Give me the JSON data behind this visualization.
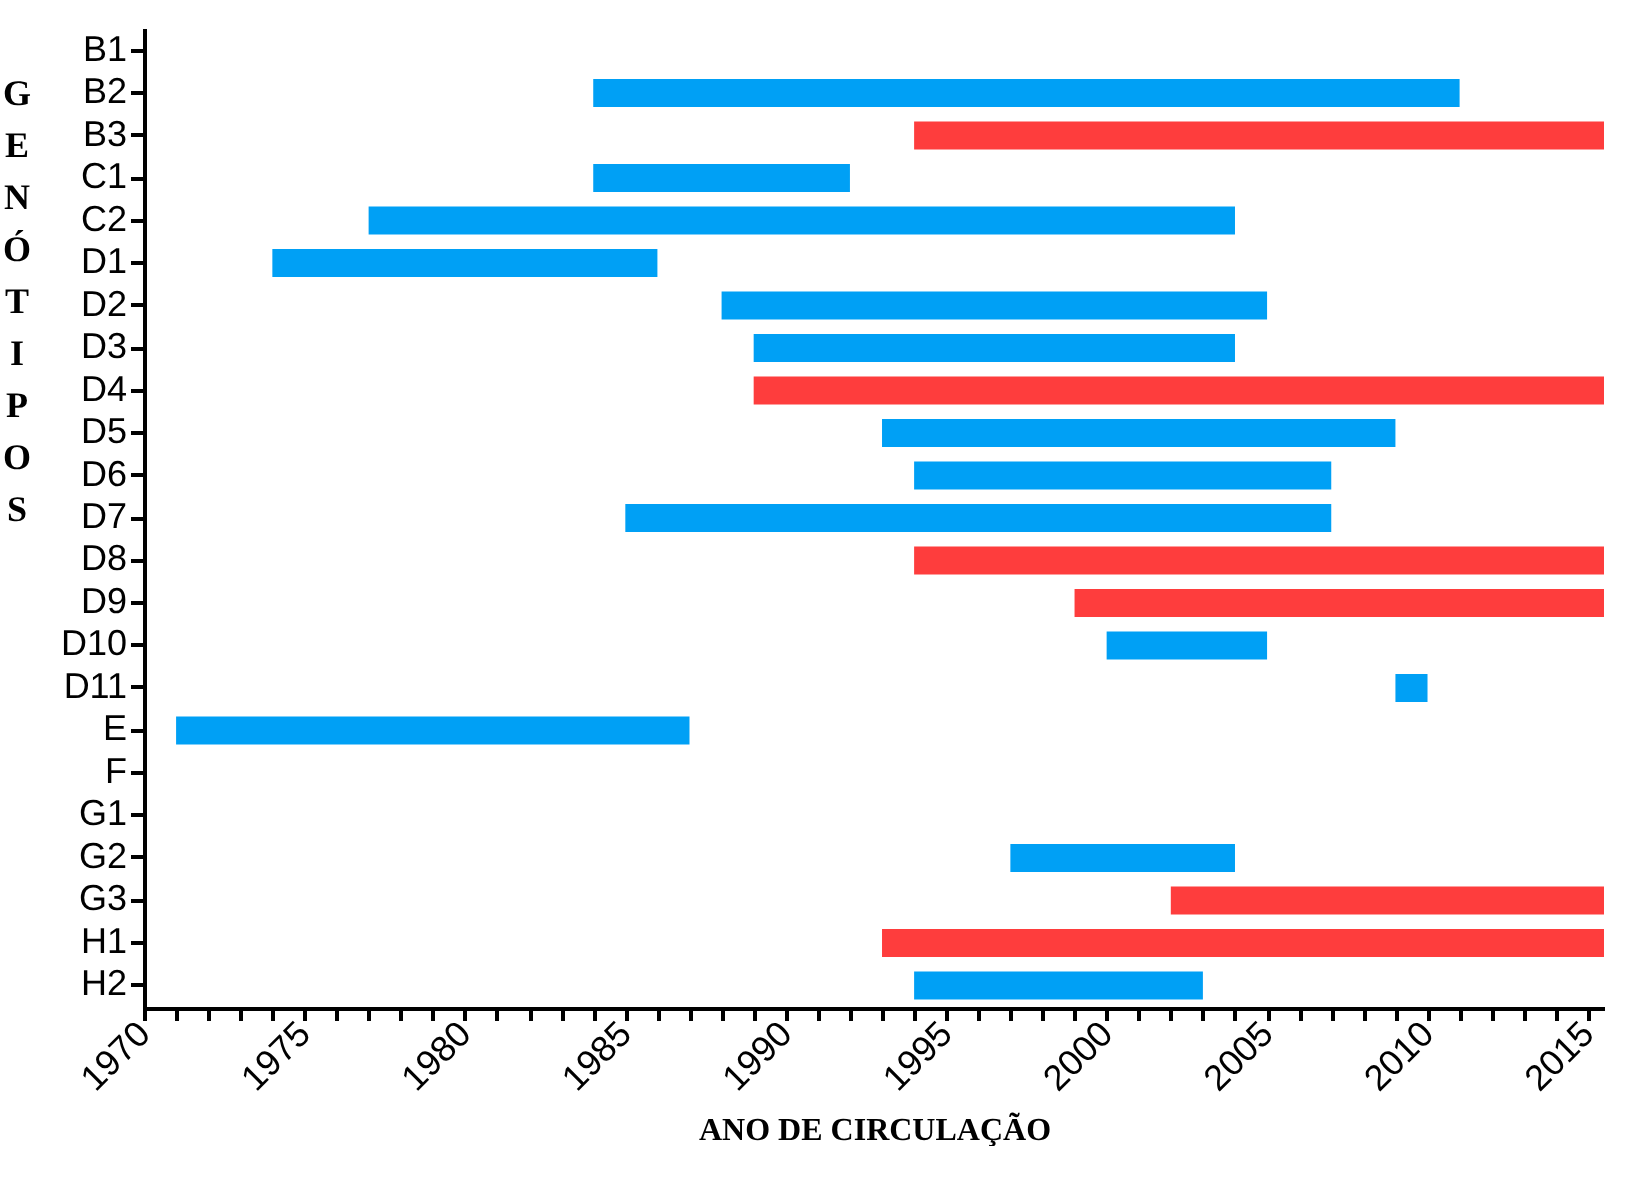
{
  "chart_data": {
    "type": "bar",
    "orientation": "horizontal",
    "xlabel": "ANO DE CIRCULAÇÃO",
    "ylabel": "GENÓTIPOS",
    "categories": [
      "B1",
      "B2",
      "B3",
      "C1",
      "C2",
      "D1",
      "D2",
      "D3",
      "D4",
      "D5",
      "D6",
      "D7",
      "D8",
      "D9",
      "D10",
      "D11",
      "E",
      "F",
      "G1",
      "G2",
      "G3",
      "H1",
      "H2"
    ],
    "base": [
      null,
      1984,
      1994,
      1984,
      1977,
      1974,
      1988,
      1989,
      1989,
      1993,
      1994,
      1985,
      1994,
      1999,
      2000,
      2009,
      1971,
      null,
      null,
      1997,
      2002,
      1993,
      1994
    ],
    "values": [
      null,
      27,
      21.5,
      8,
      27,
      12,
      17,
      15,
      26.5,
      16,
      13,
      22,
      21.5,
      16.5,
      5,
      1,
      16,
      null,
      null,
      7,
      13.5,
      22.5,
      9
    ],
    "colors": [
      null,
      "#00a0f5",
      "#fe3d3d",
      "#00a0f5",
      "#00a0f5",
      "#00a0f5",
      "#00a0f5",
      "#00a0f5",
      "#fe3d3d",
      "#00a0f5",
      "#00a0f5",
      "#00a0f5",
      "#fe3d3d",
      "#fe3d3d",
      "#00a0f5",
      "#00a0f5",
      "#00a0f5",
      null,
      null,
      "#00a0f5",
      "#fe3d3d",
      "#fe3d3d",
      "#00a0f5"
    ],
    "xlim": [
      1970,
      2015.5
    ],
    "xticks": [
      1970,
      {
        "value": 1971,
        "label": null
      },
      {
        "value": 1972,
        "label": null
      },
      {
        "value": 1973,
        "label": null
      },
      {
        "value": 1974,
        "label": null
      },
      1975,
      {
        "value": 1976,
        "label": null
      },
      {
        "value": 1977,
        "label": null
      },
      {
        "value": 1978,
        "label": null
      },
      {
        "value": 1979,
        "label": null
      },
      1980,
      {
        "value": 1981,
        "label": null
      },
      {
        "value": 1982,
        "label": null
      },
      {
        "value": 1983,
        "label": null
      },
      {
        "value": 1984,
        "label": null
      },
      1985,
      {
        "value": 1986,
        "label": null
      },
      {
        "value": 1987,
        "label": null
      },
      {
        "value": 1988,
        "label": null
      },
      {
        "value": 1989,
        "label": null
      },
      1990,
      {
        "value": 1991,
        "label": null
      },
      {
        "value": 1992,
        "label": null
      },
      {
        "value": 1993,
        "label": null
      },
      {
        "value": 1994,
        "label": null
      },
      1995,
      {
        "value": 1996,
        "label": null
      },
      {
        "value": 1997,
        "label": null
      },
      {
        "value": 1998,
        "label": null
      },
      {
        "value": 1999,
        "label": null
      },
      2000,
      {
        "value": 2001,
        "label": null
      },
      {
        "value": 2002,
        "label": null
      },
      {
        "value": 2003,
        "label": null
      },
      {
        "value": 2004,
        "label": null
      },
      2005,
      {
        "value": 2006,
        "label": null
      },
      {
        "value": 2007,
        "label": null
      },
      {
        "value": 2008,
        "label": null
      },
      {
        "value": 2009,
        "label": null
      },
      2010,
      {
        "value": 2011,
        "label": null
      },
      {
        "value": 2012,
        "label": null
      },
      {
        "value": 2013,
        "label": null
      },
      {
        "value": 2014,
        "label": null
      },
      2015
    ],
    "grid": false
  }
}
